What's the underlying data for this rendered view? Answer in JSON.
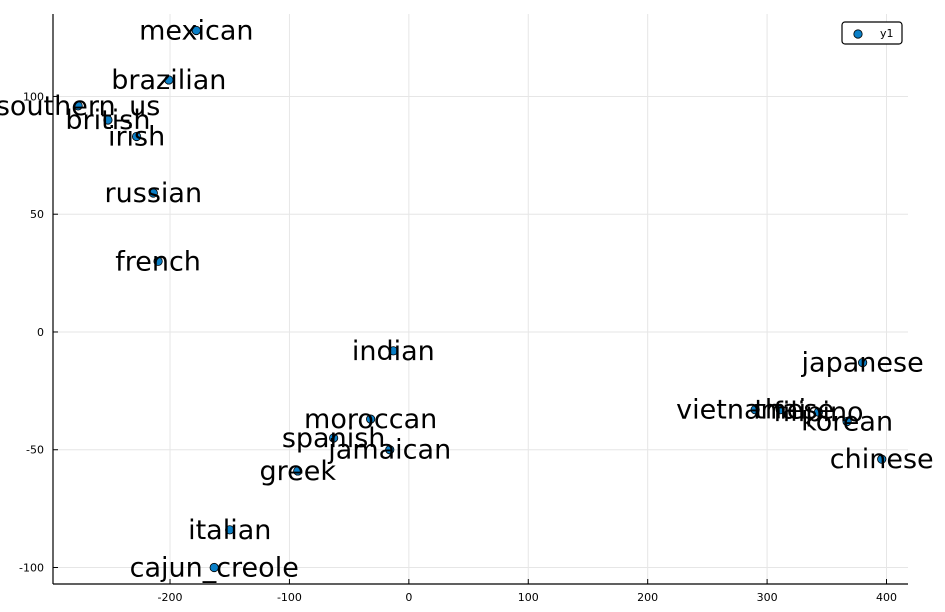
{
  "chart_data": {
    "type": "scatter",
    "title": "",
    "xlabel": "",
    "ylabel": "",
    "xlim": [
      -298,
      418
    ],
    "ylim": [
      -107,
      135
    ],
    "xticks": [
      -200,
      -100,
      0,
      100,
      200,
      300,
      400
    ],
    "yticks": [
      -100,
      -50,
      0,
      50,
      100
    ],
    "xtick_labels": [
      "-200",
      "-100",
      "0",
      "100",
      "200",
      "300",
      "400"
    ],
    "ytick_labels": [
      "-100",
      "-50",
      "0",
      "50",
      "100"
    ],
    "grid": true,
    "legend": {
      "position": "top-right",
      "entries": [
        "y1"
      ]
    },
    "series": [
      {
        "name": "y1",
        "color": "#0a7fc7",
        "points": [
          {
            "label": "mexican",
            "x": -178,
            "y": 128
          },
          {
            "label": "brazilian",
            "x": -201,
            "y": 107
          },
          {
            "label": "southern_us",
            "x": -277,
            "y": 96
          },
          {
            "label": "british",
            "x": -252,
            "y": 90
          },
          {
            "label": "irish",
            "x": -228,
            "y": 83
          },
          {
            "label": "russian",
            "x": -214,
            "y": 59
          },
          {
            "label": "french",
            "x": -210,
            "y": 30
          },
          {
            "label": "indian",
            "x": -13,
            "y": -8
          },
          {
            "label": "japanese",
            "x": 380,
            "y": -13
          },
          {
            "label": "vietnamese",
            "x": 290,
            "y": -33
          },
          {
            "label": "thai",
            "x": 311,
            "y": -33
          },
          {
            "label": "filipino",
            "x": 343,
            "y": -34
          },
          {
            "label": "korean",
            "x": 367,
            "y": -38
          },
          {
            "label": "chinese",
            "x": 396,
            "y": -54
          },
          {
            "label": "moroccan",
            "x": -32,
            "y": -37
          },
          {
            "label": "spanish",
            "x": -63,
            "y": -45
          },
          {
            "label": "jamaican",
            "x": -16,
            "y": -50
          },
          {
            "label": "greek",
            "x": -93,
            "y": -59
          },
          {
            "label": "italian",
            "x": -150,
            "y": -84
          },
          {
            "label": "cajun_creole",
            "x": -163,
            "y": -100
          }
        ]
      }
    ]
  }
}
